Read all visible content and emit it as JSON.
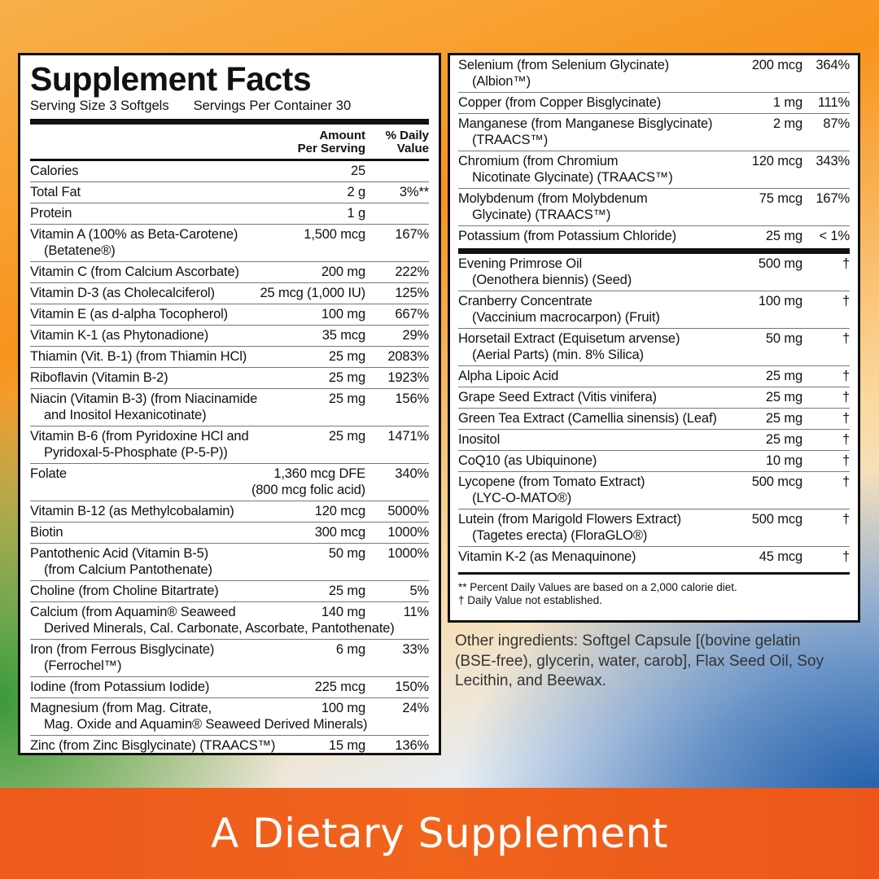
{
  "left": {
    "title": "Supplement Facts",
    "serving_size": "Serving Size 3 Softgels",
    "servings_per_container": "Servings Per Container 30",
    "header": {
      "amount": [
        "Amount",
        "Per Serving"
      ],
      "dv": [
        "% Daily",
        "Value"
      ]
    },
    "rows": [
      {
        "name": [
          "Calories"
        ],
        "amount": [
          "25"
        ]
      },
      {
        "name": [
          "Total Fat"
        ],
        "amount": [
          "2 g"
        ],
        "dv": "3%**"
      },
      {
        "name": [
          "Protein"
        ],
        "amount": [
          "1 g"
        ]
      },
      {
        "name": [
          "Vitamin A (100% as Beta-Carotene)",
          "(Betatene®)"
        ],
        "amount": [
          "1,500 mcg"
        ],
        "dv": "167%"
      },
      {
        "name": [
          "Vitamin C (from Calcium Ascorbate)"
        ],
        "amount": [
          "200 mg"
        ],
        "dv": "222%"
      },
      {
        "name": [
          "Vitamin D-3 (as Cholecalciferol)"
        ],
        "amount": [
          "25 mcg (1,000 IU)"
        ],
        "dv": "125%"
      },
      {
        "name": [
          "Vitamin E (as d-alpha Tocopherol)"
        ],
        "amount": [
          "100 mg"
        ],
        "dv": "667%"
      },
      {
        "name": [
          "Vitamin K-1 (as Phytonadione)"
        ],
        "amount": [
          "35 mcg"
        ],
        "dv": "29%"
      },
      {
        "name": [
          "Thiamin (Vit. B-1) (from Thiamin HCl)"
        ],
        "amount": [
          "25 mg"
        ],
        "dv": "2083%"
      },
      {
        "name": [
          "Riboflavin (Vitamin B-2)"
        ],
        "amount": [
          "25 mg"
        ],
        "dv": "1923%"
      },
      {
        "name": [
          "Niacin (Vitamin B-3) (from Niacinamide",
          "and Inositol Hexanicotinate)"
        ],
        "amount": [
          "25 mg"
        ],
        "dv": "156%"
      },
      {
        "name": [
          "Vitamin B-6 (from Pyridoxine HCl and",
          "Pyridoxal-5-Phosphate (P-5-P))"
        ],
        "amount": [
          "25 mg"
        ],
        "dv": "1471%"
      },
      {
        "name": [
          "Folate"
        ],
        "amount": [
          "1,360 mcg DFE",
          "(800 mcg folic acid)"
        ],
        "dv": "340%"
      },
      {
        "name": [
          "Vitamin B-12 (as Methylcobalamin)"
        ],
        "amount": [
          "120 mcg"
        ],
        "dv": "5000%"
      },
      {
        "name": [
          "Biotin"
        ],
        "amount": [
          "300 mcg"
        ],
        "dv": "1000%"
      },
      {
        "name": [
          "Pantothenic Acid (Vitamin B-5)",
          "(from Calcium Pantothenate)"
        ],
        "amount": [
          "50 mg"
        ],
        "dv": "1000%"
      },
      {
        "name": [
          "Choline (from Choline Bitartrate)"
        ],
        "amount": [
          "25 mg"
        ],
        "dv": "5%"
      },
      {
        "name": [
          "Calcium (from Aquamin® Seaweed",
          "Derived Minerals, Cal. Carbonate, Ascorbate, Pantothenate)"
        ],
        "amount": [
          "140 mg"
        ],
        "dv": "11%"
      },
      {
        "name": [
          "Iron (from Ferrous Bisglycinate)",
          "(Ferrochel™)"
        ],
        "amount": [
          "6 mg"
        ],
        "dv": "33%"
      },
      {
        "name": [
          "Iodine (from Potassium Iodide)"
        ],
        "amount": [
          "225 mcg"
        ],
        "dv": "150%"
      },
      {
        "name": [
          "Magnesium (from Mag. Citrate,",
          "Mag. Oxide and Aquamin® Seaweed Derived Minerals)"
        ],
        "amount": [
          "100 mg"
        ],
        "dv": "24%"
      },
      {
        "name": [
          "Zinc (from Zinc Bisglycinate) (TRAACS™)"
        ],
        "amount": [
          "15 mg"
        ],
        "dv": "136%"
      }
    ]
  },
  "right": {
    "rows": [
      {
        "name": [
          "Selenium (from Selenium Glycinate)",
          "(Albion™)"
        ],
        "amount": [
          "200 mcg"
        ],
        "dv": "364%"
      },
      {
        "name": [
          "Copper (from Copper Bisglycinate)"
        ],
        "amount": [
          "1 mg"
        ],
        "dv": "111%"
      },
      {
        "name": [
          "Manganese (from Manganese Bisglycinate)",
          "(TRAACS™)"
        ],
        "amount": [
          "2 mg"
        ],
        "dv": "87%"
      },
      {
        "name": [
          "Chromium (from Chromium",
          "Nicotinate Glycinate) (TRAACS™)"
        ],
        "amount": [
          "120 mcg"
        ],
        "dv": "343%"
      },
      {
        "name": [
          "Molybdenum (from Molybdenum",
          "Glycinate) (TRAACS™)"
        ],
        "amount": [
          "75 mcg"
        ],
        "dv": "167%"
      },
      {
        "name": [
          "Potassium (from Potassium Chloride)"
        ],
        "amount": [
          "25 mg"
        ],
        "dv": "< 1%"
      }
    ],
    "other_rows": [
      {
        "name": [
          "Evening Primrose Oil",
          "(Oenothera biennis) (Seed)"
        ],
        "amount": [
          "500 mg"
        ],
        "dv": "†"
      },
      {
        "name": [
          "Cranberry Concentrate",
          "(Vaccinium macrocarpon) (Fruit)"
        ],
        "amount": [
          "100 mg"
        ],
        "dv": "†"
      },
      {
        "name": [
          "Horsetail Extract (Equisetum arvense)",
          "(Aerial Parts) (min. 8% Silica)"
        ],
        "amount": [
          "50 mg"
        ],
        "dv": "†"
      },
      {
        "name": [
          "Alpha Lipoic Acid"
        ],
        "amount": [
          "25 mg"
        ],
        "dv": "†"
      },
      {
        "name": [
          "Grape Seed Extract (Vitis vinifera)"
        ],
        "amount": [
          "25 mg"
        ],
        "dv": "†"
      },
      {
        "name": [
          "Green Tea Extract (Camellia sinensis) (Leaf)"
        ],
        "amount": [
          "25 mg"
        ],
        "dv": "†"
      },
      {
        "name": [
          "Inositol"
        ],
        "amount": [
          "25 mg"
        ],
        "dv": "†"
      },
      {
        "name": [
          "CoQ10 (as Ubiquinone)"
        ],
        "amount": [
          "10 mg"
        ],
        "dv": "†"
      },
      {
        "name": [
          "Lycopene (from Tomato Extract)",
          "(LYC-O-MATO®)"
        ],
        "amount": [
          "500 mcg"
        ],
        "dv": "†"
      },
      {
        "name": [
          "Lutein (from Marigold Flowers Extract)",
          "(Tagetes erecta) (FloraGLO®)"
        ],
        "amount": [
          "500 mcg"
        ],
        "dv": "†"
      },
      {
        "name": [
          "Vitamin K-2 (as Menaquinone)"
        ],
        "amount": [
          "45 mcg"
        ],
        "dv": "†"
      }
    ],
    "footnotes": [
      "** Percent Daily Values are based on a 2,000 calorie diet.",
      "† Daily Value not established."
    ]
  },
  "other_ingredients": "Other ingredients: Softgel Capsule [(bovine gelatin (BSE-free), glycerin, water, carob], Flax Seed Oil, Soy Lecithin, and Beewax.",
  "banner": "A Dietary Supplement"
}
